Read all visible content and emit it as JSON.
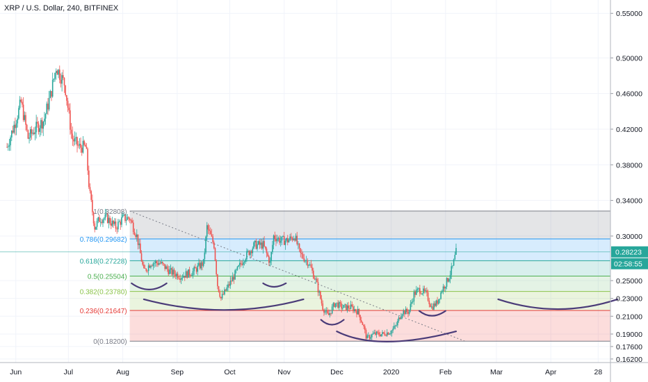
{
  "header": {
    "symbol_title": "XRP / U.S. Dollar, 240, BITFINEX"
  },
  "colors": {
    "up": "#26a69a",
    "down": "#ef5350",
    "curve": "#4a3b78",
    "badge": "#26a69a",
    "axis_text": "#131722"
  },
  "chart_data": {
    "type": "candlestick",
    "title": "XRP / U.S. Dollar, 240, BITFINEX",
    "ylim": [
      0.158,
      0.565
    ],
    "y_ticks": [
      "0.55000",
      "0.50000",
      "0.46000",
      "0.42000",
      "0.38000",
      "0.34000",
      "0.30000",
      "0.25000",
      "0.23000",
      "0.21000",
      "0.19000",
      "0.17600",
      "0.16200"
    ],
    "x_ticks": [
      "Jun",
      "Jul",
      "Aug",
      "Sep",
      "Oct",
      "Nov",
      "Dec",
      "2020",
      "Feb",
      "Mar",
      "Apr",
      "28"
    ],
    "last_price": "0.28223",
    "countdown": "02:58:55",
    "price_path": [
      [
        "2019-05-27",
        0.4
      ],
      [
        "2019-06-01",
        0.43
      ],
      [
        "2019-06-04",
        0.45
      ],
      [
        "2019-06-08",
        0.41
      ],
      [
        "2019-06-12",
        0.42
      ],
      [
        "2019-06-17",
        0.43
      ],
      [
        "2019-06-21",
        0.46
      ],
      [
        "2019-06-24",
        0.49
      ],
      [
        "2019-06-29",
        0.47
      ],
      [
        "2019-07-03",
        0.41
      ],
      [
        "2019-07-07",
        0.4
      ],
      [
        "2019-07-11",
        0.4
      ],
      [
        "2019-07-13",
        0.35
      ],
      [
        "2019-07-16",
        0.31
      ],
      [
        "2019-07-19",
        0.32
      ],
      [
        "2019-07-23",
        0.32
      ],
      [
        "2019-07-28",
        0.31
      ],
      [
        "2019-08-01",
        0.32
      ],
      [
        "2019-08-05",
        0.32
      ],
      [
        "2019-08-09",
        0.3
      ],
      [
        "2019-08-13",
        0.26
      ],
      [
        "2019-08-17",
        0.27
      ],
      [
        "2019-08-22",
        0.27
      ],
      [
        "2019-08-28",
        0.26
      ],
      [
        "2019-09-03",
        0.255
      ],
      [
        "2019-09-10",
        0.26
      ],
      [
        "2019-09-16",
        0.27
      ],
      [
        "2019-09-18",
        0.31
      ],
      [
        "2019-09-22",
        0.29
      ],
      [
        "2019-09-24",
        0.245
      ],
      [
        "2019-09-26",
        0.23
      ],
      [
        "2019-10-02",
        0.25
      ],
      [
        "2019-10-09",
        0.275
      ],
      [
        "2019-10-15",
        0.29
      ],
      [
        "2019-10-20",
        0.29
      ],
      [
        "2019-10-24",
        0.27
      ],
      [
        "2019-10-26",
        0.3
      ],
      [
        "2019-10-30",
        0.295
      ],
      [
        "2019-11-03",
        0.295
      ],
      [
        "2019-11-07",
        0.3
      ],
      [
        "2019-11-10",
        0.28
      ],
      [
        "2019-11-15",
        0.27
      ],
      [
        "2019-11-19",
        0.25
      ],
      [
        "2019-11-23",
        0.22
      ],
      [
        "2019-11-26",
        0.21
      ],
      [
        "2019-11-30",
        0.225
      ],
      [
        "2019-12-04",
        0.22
      ],
      [
        "2019-12-09",
        0.22
      ],
      [
        "2019-12-13",
        0.215
      ],
      [
        "2019-12-16",
        0.2
      ],
      [
        "2019-12-18",
        0.185
      ],
      [
        "2019-12-22",
        0.19
      ],
      [
        "2019-12-27",
        0.19
      ],
      [
        "2020-01-01",
        0.193
      ],
      [
        "2020-01-04",
        0.2
      ],
      [
        "2020-01-07",
        0.215
      ],
      [
        "2020-01-11",
        0.215
      ],
      [
        "2020-01-14",
        0.235
      ],
      [
        "2020-01-17",
        0.24
      ],
      [
        "2020-01-21",
        0.235
      ],
      [
        "2020-01-24",
        0.22
      ],
      [
        "2020-01-27",
        0.225
      ],
      [
        "2020-01-30",
        0.24
      ],
      [
        "2020-02-02",
        0.25
      ],
      [
        "2020-02-05",
        0.265
      ],
      [
        "2020-02-07",
        0.282
      ]
    ],
    "fib_levels": [
      {
        "ratio": 1,
        "label": "1(0.32808)",
        "price": 0.32808,
        "color": "#787b86",
        "fill": "rgba(120,123,134,0.20)"
      },
      {
        "ratio": 0.786,
        "label": "0.786(0.29682)",
        "price": 0.29682,
        "color": "#2196f3",
        "fill": "rgba(33,150,243,0.18)"
      },
      {
        "ratio": 0.618,
        "label": "0.618(0.27228)",
        "price": 0.27228,
        "color": "#26a69a",
        "fill": "rgba(38,166,154,0.18)"
      },
      {
        "ratio": 0.5,
        "label": "0.5(0.25504)",
        "price": 0.25504,
        "color": "#4caf50",
        "fill": "rgba(76,175,80,0.15)"
      },
      {
        "ratio": 0.382,
        "label": "0.382(0.23780)",
        "price": 0.2378,
        "color": "#8bc34a",
        "fill": "rgba(139,195,74,0.18)"
      },
      {
        "ratio": 0.236,
        "label": "0.236(0.21647)",
        "price": 0.21647,
        "color": "#e53935",
        "fill": "rgba(239,83,80,0.20)"
      },
      {
        "ratio": 0,
        "label": "0(0.18200)",
        "price": 0.182,
        "color": "#787b86",
        "fill": "none"
      }
    ]
  }
}
